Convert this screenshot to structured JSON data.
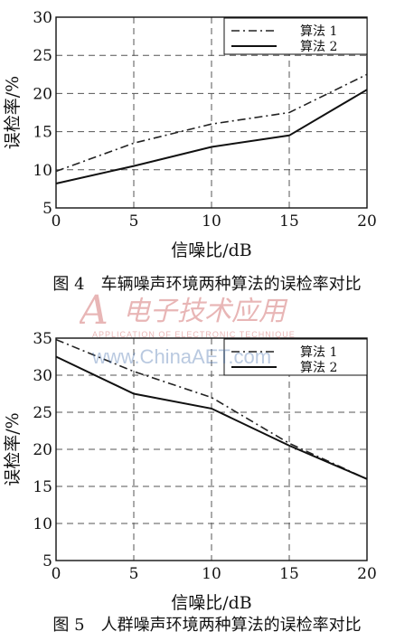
{
  "chart_data": [
    {
      "type": "line",
      "caption": "图 4　车辆噪声环境两种算法的误检率对比",
      "xlabel": "信噪比/dB",
      "ylabel": "误检率/%",
      "xlim": [
        0,
        20
      ],
      "ylim": [
        5,
        30
      ],
      "xticks": [
        0,
        5,
        10,
        15,
        20
      ],
      "yticks": [
        5,
        10,
        15,
        20,
        25,
        30
      ],
      "grid": true,
      "legend": "top-right",
      "series": [
        {
          "name": "算法 1",
          "style": "dashdot",
          "x": [
            0,
            5,
            10,
            15,
            20
          ],
          "y": [
            9.8,
            13.5,
            16.0,
            17.5,
            22.5
          ]
        },
        {
          "name": "算法 2",
          "style": "solid",
          "x": [
            0,
            5,
            10,
            15,
            20
          ],
          "y": [
            8.2,
            10.5,
            13.0,
            14.5,
            20.5
          ]
        }
      ]
    },
    {
      "type": "line",
      "caption": "图 5　人群噪声环境两种算法的误检率对比",
      "xlabel": "信噪比/dB",
      "ylabel": "误检率/%",
      "xlim": [
        0,
        20
      ],
      "ylim": [
        5,
        35
      ],
      "xticks": [
        0,
        5,
        10,
        15,
        20
      ],
      "yticks": [
        5,
        10,
        15,
        20,
        25,
        30,
        35
      ],
      "grid": true,
      "legend": "top-right",
      "series": [
        {
          "name": "算法 1",
          "style": "dashdot",
          "x": [
            0,
            5,
            10,
            15,
            20
          ],
          "y": [
            34.8,
            30.5,
            27.0,
            20.8,
            16.0
          ]
        },
        {
          "name": "算法 2",
          "style": "solid",
          "x": [
            0,
            5,
            10,
            15,
            20
          ],
          "y": [
            32.5,
            27.5,
            25.5,
            20.5,
            16.0
          ]
        }
      ]
    }
  ],
  "watermark": {
    "brand": "电子技术应用",
    "subtitle": "APPLICATION OF ELECTRONIC TECHNIQUE",
    "url": "www.ChinaAET.com"
  }
}
